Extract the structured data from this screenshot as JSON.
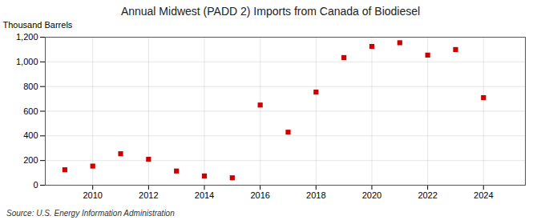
{
  "chart_data": {
    "type": "scatter",
    "title": "Annual Midwest (PADD 2) Imports from Canada of Biodiesel",
    "ylabel": "Thousand Barrels",
    "source": "Source: U.S. Energy Information Administration",
    "x": [
      2009,
      2010,
      2011,
      2012,
      2013,
      2014,
      2015,
      2016,
      2017,
      2018,
      2019,
      2020,
      2021,
      2022,
      2023,
      2024
    ],
    "values": [
      125,
      155,
      255,
      210,
      115,
      75,
      60,
      650,
      430,
      755,
      1035,
      1125,
      1155,
      1055,
      1100,
      710
    ],
    "color": "#cc0000",
    "marker": "square",
    "xlim": [
      2008.3,
      2025.5
    ],
    "ylim": [
      0,
      1200
    ],
    "xticks": [
      2010,
      2012,
      2014,
      2016,
      2018,
      2020,
      2022,
      2024
    ],
    "yticks": [
      0,
      200,
      400,
      600,
      800,
      {
        "value": 1000,
        "label": "1,000"
      },
      {
        "value": 1200,
        "label": "1,200"
      }
    ],
    "grid": true
  }
}
